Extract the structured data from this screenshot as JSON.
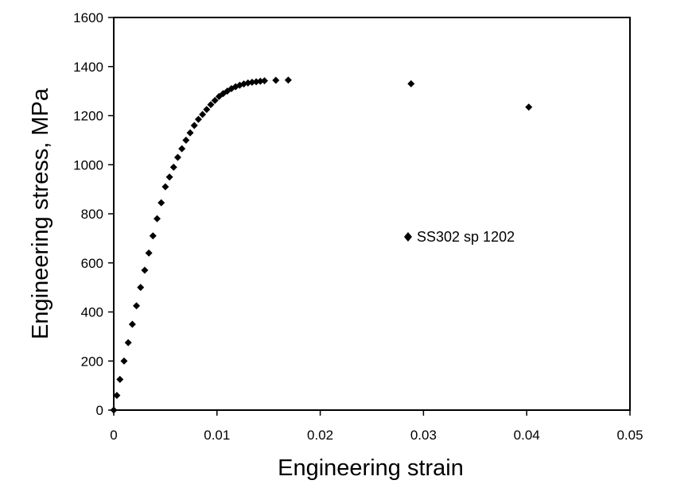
{
  "chart_data": {
    "type": "scatter",
    "xlabel": "Engineering strain",
    "ylabel": "Engineering stress, MPa",
    "xlim": [
      0,
      0.05
    ],
    "ylim": [
      0,
      1600
    ],
    "xticks": [
      "0",
      "0.01",
      "0.02",
      "0.03",
      "0.04",
      "0.05"
    ],
    "yticks": [
      "0",
      "200",
      "400",
      "600",
      "800",
      "1000",
      "1200",
      "1400",
      "1600"
    ],
    "grid": false,
    "legend": "center-right",
    "marker": "diamond",
    "color": "#000000",
    "series": [
      {
        "name": "SS302 sp 1202",
        "x": [
          0,
          0.0003,
          0.0006,
          0.001,
          0.0014,
          0.0018,
          0.0022,
          0.0026,
          0.003,
          0.0034,
          0.0038,
          0.0042,
          0.0046,
          0.005,
          0.0054,
          0.0058,
          0.0062,
          0.0066,
          0.007,
          0.0074,
          0.0078,
          0.0082,
          0.0086,
          0.009,
          0.0094,
          0.0098,
          0.0102,
          0.0106,
          0.011,
          0.0114,
          0.0118,
          0.0122,
          0.0126,
          0.013,
          0.0134,
          0.0138,
          0.0142,
          0.0146,
          0.0157,
          0.0169,
          0.0288,
          0.0402
        ],
        "y": [
          0,
          60,
          125,
          200,
          275,
          350,
          425,
          500,
          570,
          640,
          710,
          780,
          845,
          910,
          950,
          990,
          1030,
          1065,
          1100,
          1130,
          1160,
          1185,
          1205,
          1225,
          1245,
          1262,
          1278,
          1290,
          1300,
          1310,
          1318,
          1324,
          1329,
          1333,
          1336,
          1338,
          1340,
          1342,
          1344,
          1345,
          1330,
          1235
        ]
      }
    ]
  }
}
